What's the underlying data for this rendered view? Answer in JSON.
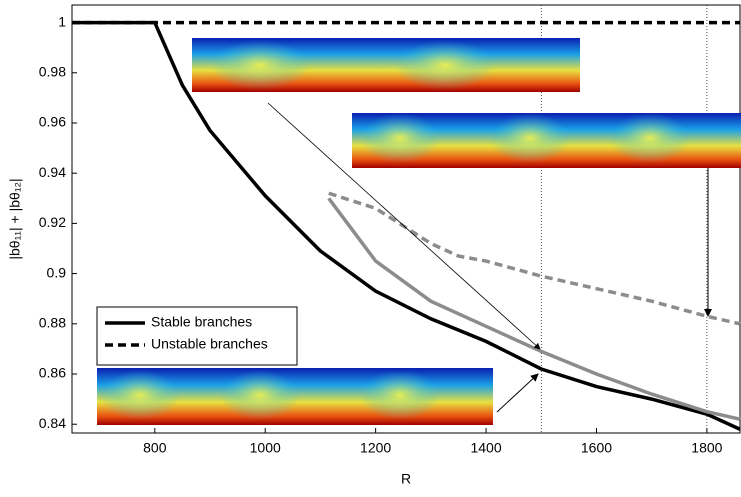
{
  "chart_data": {
    "type": "line",
    "xlabel": "R",
    "ylabel": "|bθ₁₁| + |bθ₁₂|",
    "xlim": [
      650,
      1860
    ],
    "ylim": [
      0.8365,
      1.007
    ],
    "xticks": [
      800,
      1000,
      1200,
      1400,
      1600,
      1800
    ],
    "yticks": [
      0.84,
      0.86,
      0.88,
      0.9,
      0.92,
      0.94,
      0.96,
      0.98,
      1
    ],
    "vlines": [
      1500,
      1800
    ],
    "legend": "lower left",
    "series": [
      {
        "name": "Stable branches",
        "color": "#000000",
        "style": "solid",
        "x": [
          650,
          800,
          850,
          900,
          1000,
          1100,
          1200,
          1300,
          1400,
          1500,
          1600,
          1700,
          1800,
          1860
        ],
        "values": [
          1,
          1,
          0.975,
          0.957,
          0.931,
          0.909,
          0.893,
          0.882,
          0.873,
          0.862,
          0.855,
          0.85,
          0.844,
          0.838
        ]
      },
      {
        "name": "Unstable branches",
        "color": "#000000",
        "style": "dashed",
        "x": [
          650,
          1860
        ],
        "values": [
          1,
          1
        ]
      },
      {
        "color": "#8c8c8c",
        "style": "solid",
        "x": [
          1115,
          1200,
          1300,
          1400,
          1500,
          1600,
          1700,
          1800,
          1860
        ],
        "values": [
          0.93,
          0.905,
          0.889,
          0.879,
          0.869,
          0.86,
          0.852,
          0.845,
          0.842
        ]
      },
      {
        "color": "#8c8c8c",
        "style": "dashed",
        "x": [
          1115,
          1200,
          1300,
          1350,
          1400,
          1500,
          1600,
          1700,
          1800,
          1860
        ],
        "values": [
          0.932,
          0.926,
          0.912,
          0.907,
          0.905,
          0.899,
          0.894,
          0.889,
          0.883,
          0.88
        ]
      }
    ]
  }
}
